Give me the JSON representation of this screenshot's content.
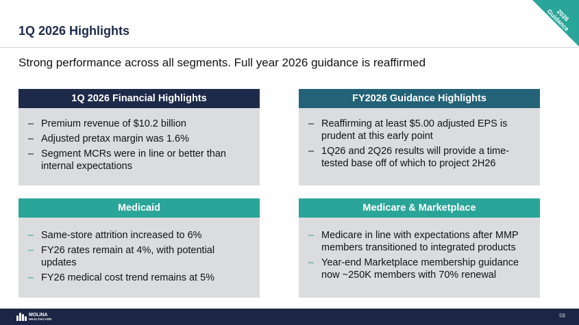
{
  "slide": {
    "title": "1Q 2026 Highlights",
    "subtitle": "Strong performance across all segments.  Full year 2026 guidance is reaffirmed",
    "corner_tag": "2026\nGuidance",
    "page_number": "58"
  },
  "colors": {
    "navy": "#1e2a4a",
    "blue_teal": "#236277",
    "teal": "#2aa599",
    "panel_bg": "#dbdcdd",
    "footer": "#1d2544"
  },
  "panels": [
    {
      "heading": "1Q 2026 Financial Highlights",
      "bullets": [
        "Premium revenue of $10.2 billion",
        "Adjusted pretax margin was 1.6%",
        "Segment MCRs were in line or better than internal expectations"
      ]
    },
    {
      "heading": "FY2026 Guidance Highlights",
      "bullets": [
        "Reaffirming at least $5.00 adjusted EPS is prudent at this early point",
        "1Q26 and 2Q26 results will provide a time-tested base off of which to project 2H26"
      ]
    },
    {
      "heading": "Medicaid",
      "bullets": [
        "Same-store attrition increased to 6%",
        "FY26 rates remain at 4%, with potential updates",
        "FY26 medical cost trend remains at 5%"
      ]
    },
    {
      "heading": "Medicare & Marketplace",
      "bullets": [
        "Medicare in line with expectations after MMP members transitioned to integrated products",
        "Year-end Marketplace membership guidance now ~250K members with 70% renewal"
      ]
    }
  ],
  "bullet_dash": "–",
  "logo": {
    "name": "MOLINA",
    "sub": "HEALTHCARE"
  }
}
